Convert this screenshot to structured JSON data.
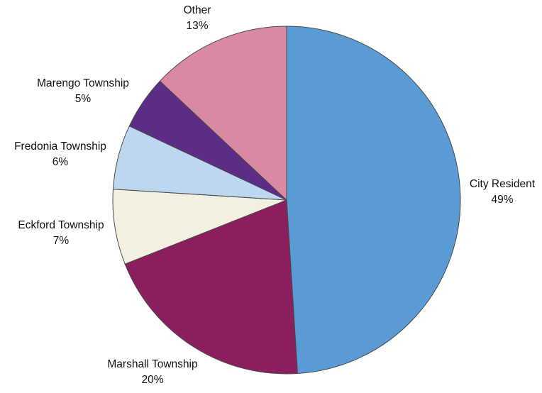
{
  "chart_data": {
    "type": "pie",
    "title": "",
    "slices": [
      {
        "label": "City Resident",
        "value": 49,
        "value_label": "49%",
        "color": "#5b9bd5"
      },
      {
        "label": "Marshall Township",
        "value": 20,
        "value_label": "20%",
        "color": "#8b1f5e"
      },
      {
        "label": "Eckford Township",
        "value": 7,
        "value_label": "7%",
        "color": "#f3f0e2"
      },
      {
        "label": "Fredonia Township",
        "value": 6,
        "value_label": "6%",
        "color": "#bcd7ef"
      },
      {
        "label": "Marengo Township",
        "value": 5,
        "value_label": "5%",
        "color": "#5b2d87"
      },
      {
        "label": "Other",
        "value": 13,
        "value_label": "13%",
        "color": "#d98aa2"
      }
    ],
    "start_angle_deg": 0,
    "direction": "clockwise",
    "legend": "none"
  }
}
